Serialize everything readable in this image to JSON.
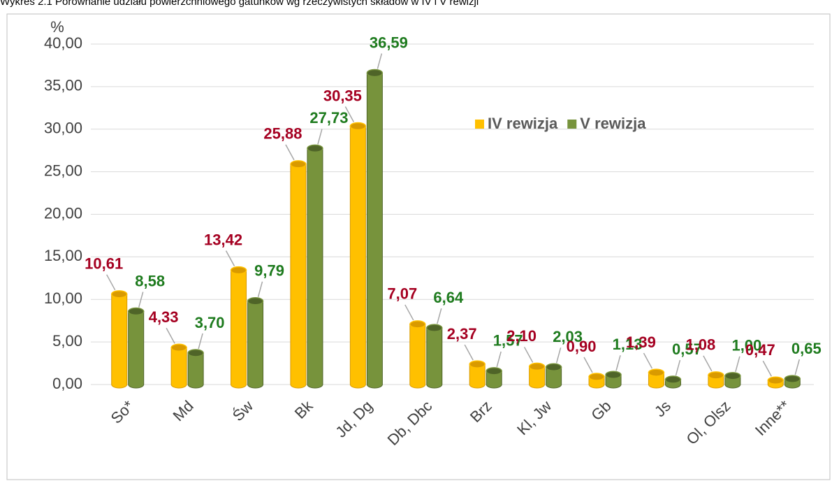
{
  "chart_data": {
    "type": "bar",
    "title": "Wykres 2.1 Porównanie udziału powierzchniowego gatunków wg rzeczywistych składów w IV i V rewizji",
    "y_label": "%",
    "categories": [
      "So*",
      "Md",
      "Św",
      "Bk",
      "Jd, Dg",
      "Db, Dbc",
      "Brz",
      "Kl, Jw",
      "Gb",
      "Js",
      "Ol, Olsz",
      "Inne**"
    ],
    "series": [
      {
        "name": "IV rewizja",
        "color": "#ffc000",
        "label_color": "#a50021",
        "values": [
          10.61,
          4.33,
          13.42,
          25.88,
          30.35,
          7.07,
          2.37,
          2.1,
          0.9,
          1.39,
          1.08,
          0.47
        ],
        "value_labels": [
          "10,61",
          "4,33",
          "13,42",
          "25,88",
          "30,35",
          "7,07",
          "2,37",
          "2,10",
          "0,90",
          "1,39",
          "1,08",
          "0,47"
        ]
      },
      {
        "name": "V rewizja",
        "color": "#77933c",
        "label_color": "#1e7b1e",
        "values": [
          8.58,
          3.7,
          9.79,
          27.73,
          36.59,
          6.64,
          1.57,
          2.03,
          1.13,
          0.57,
          1.0,
          0.65
        ],
        "value_labels": [
          "8,58",
          "3,70",
          "9,79",
          "27,73",
          "36,59",
          "6,64",
          "1,57",
          "2,03",
          "1,13",
          "0,57",
          "1,00",
          "0,65"
        ]
      }
    ],
    "ylim": [
      0,
      40
    ],
    "yticks": [
      {
        "value": 0,
        "label": "0,00"
      },
      {
        "value": 5,
        "label": "5,00"
      },
      {
        "value": 10,
        "label": "10,00"
      },
      {
        "value": 15,
        "label": "15,00"
      },
      {
        "value": 20,
        "label": "20,00"
      },
      {
        "value": 25,
        "label": "25,00"
      },
      {
        "value": 30,
        "label": "30,00"
      },
      {
        "value": 35,
        "label": "35,00"
      },
      {
        "value": 40,
        "label": "40,00"
      }
    ],
    "grid": true
  }
}
